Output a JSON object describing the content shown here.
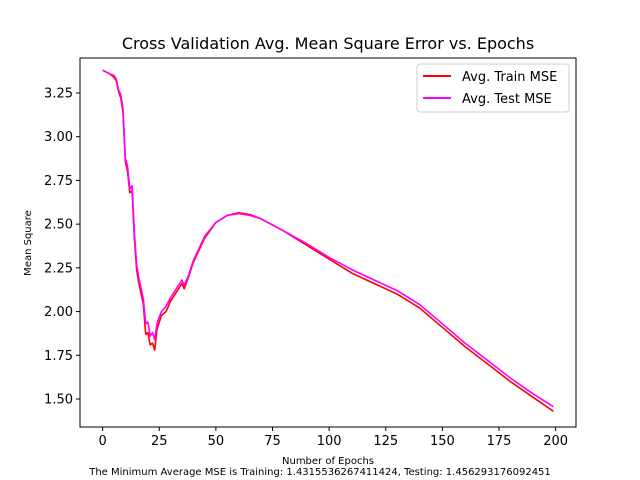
{
  "chart_data": {
    "type": "line",
    "title": "Cross Validation Avg. Mean Square Error vs. Epochs",
    "xlabel": "Number of Epochs",
    "ylabel": "Mean Square",
    "caption": "The Minimum Average MSE is Training: 1.4315536267411424, Testing: 1.456293176092451",
    "xlim": [
      -10,
      209
    ],
    "ylim": [
      1.34,
      3.45
    ],
    "xticks": [
      0,
      25,
      50,
      75,
      100,
      125,
      150,
      175,
      200
    ],
    "yticks": [
      1.5,
      1.75,
      2.0,
      2.25,
      2.5,
      2.75,
      3.0,
      3.25
    ],
    "grid": false,
    "legend_position": "top-right",
    "series": [
      {
        "name": "Avg. Train MSE",
        "color": "#ff0000",
        "x": [
          0,
          3,
          5,
          6,
          7,
          8,
          9,
          10,
          11,
          12,
          13,
          14,
          15,
          16,
          17,
          18,
          19,
          20,
          21,
          22,
          23,
          24,
          25,
          26,
          28,
          30,
          33,
          35,
          36,
          38,
          40,
          45,
          50,
          55,
          60,
          65,
          70,
          80,
          90,
          100,
          110,
          120,
          130,
          140,
          150,
          160,
          170,
          180,
          190,
          199
        ],
        "y": [
          3.38,
          3.36,
          3.34,
          3.32,
          3.26,
          3.22,
          3.14,
          2.86,
          2.8,
          2.68,
          2.69,
          2.42,
          2.24,
          2.16,
          2.1,
          2.04,
          1.87,
          1.88,
          1.81,
          1.82,
          1.78,
          1.9,
          1.94,
          1.98,
          2.0,
          2.06,
          2.12,
          2.16,
          2.13,
          2.2,
          2.28,
          2.42,
          2.51,
          2.55,
          2.565,
          2.555,
          2.53,
          2.46,
          2.38,
          2.3,
          2.22,
          2.16,
          2.1,
          2.02,
          1.91,
          1.8,
          1.7,
          1.6,
          1.51,
          1.43
        ]
      },
      {
        "name": "Avg. Test MSE",
        "color": "#ff00ff",
        "x": [
          0,
          3,
          5,
          6,
          7,
          8,
          9,
          10,
          11,
          12,
          13,
          14,
          15,
          16,
          17,
          18,
          19,
          20,
          21,
          22,
          23,
          24,
          25,
          26,
          28,
          30,
          33,
          35,
          36,
          38,
          40,
          45,
          50,
          55,
          60,
          65,
          70,
          80,
          90,
          100,
          110,
          120,
          130,
          140,
          150,
          160,
          170,
          180,
          190,
          199
        ],
        "y": [
          3.38,
          3.36,
          3.35,
          3.33,
          3.27,
          3.24,
          3.16,
          2.88,
          2.83,
          2.7,
          2.72,
          2.45,
          2.27,
          2.19,
          2.13,
          2.07,
          1.93,
          1.94,
          1.86,
          1.88,
          1.84,
          1.93,
          1.97,
          2.0,
          2.03,
          2.08,
          2.14,
          2.18,
          2.15,
          2.21,
          2.29,
          2.43,
          2.51,
          2.55,
          2.56,
          2.55,
          2.53,
          2.46,
          2.39,
          2.31,
          2.24,
          2.18,
          2.12,
          2.04,
          1.93,
          1.82,
          1.72,
          1.62,
          1.53,
          1.456
        ]
      }
    ]
  }
}
